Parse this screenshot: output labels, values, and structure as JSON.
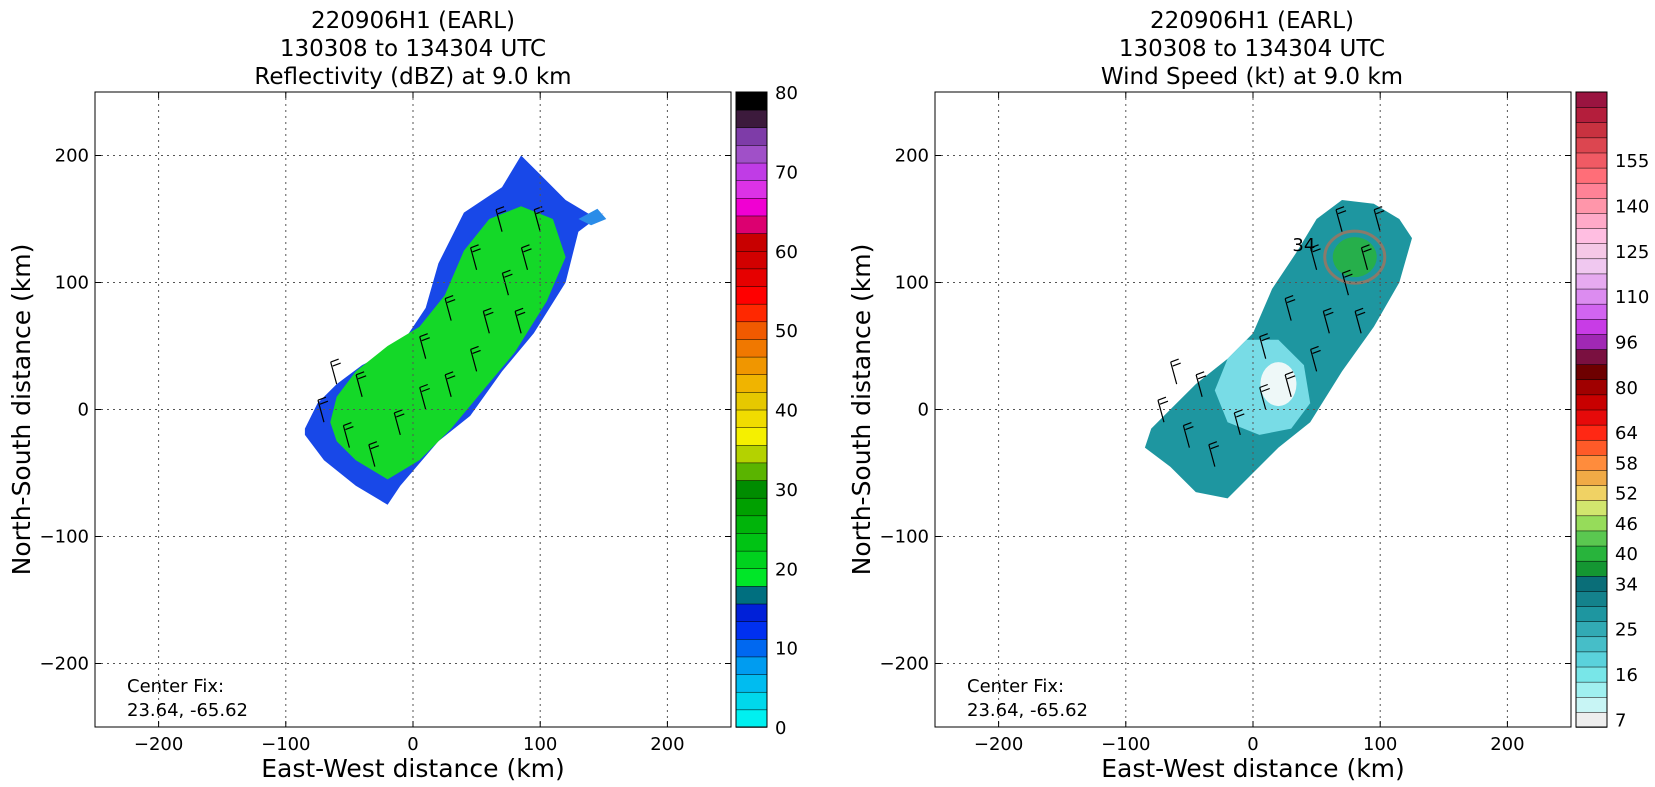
{
  "chart_data": [
    {
      "type": "heatmap",
      "title": [
        "220906H1 (EARL)",
        "130308 to 134304 UTC",
        "Reflectivity (dBZ) at 9.0 km"
      ],
      "xlabel": "East-West distance (km)",
      "ylabel": "North-South distance (km)",
      "xlim": [
        -250,
        250
      ],
      "ylim": [
        -250,
        250
      ],
      "xticks": [
        -200,
        -100,
        0,
        100,
        200
      ],
      "yticks": [
        -200,
        -100,
        0,
        100,
        200
      ],
      "xticklabels": [
        "−200",
        "−100",
        "0",
        "100",
        "200"
      ],
      "yticklabels": [
        "−200",
        "−100",
        "0",
        "100",
        "200"
      ],
      "grid": true,
      "annotation": [
        "Center Fix:",
        "23.64, -65.62"
      ],
      "colorbar": {
        "min": 0,
        "max": 80,
        "step": 2.5,
        "labels": [
          "0",
          "10",
          "20",
          "30",
          "40",
          "50",
          "60",
          "70",
          "80"
        ],
        "label_values": [
          0,
          10,
          20,
          30,
          40,
          50,
          60,
          70,
          80
        ],
        "colors": [
          "#00f0f0",
          "#00d8ec",
          "#00bcf0",
          "#009cf0",
          "#0068f0",
          "#0030f0",
          "#0020d8",
          "#006f7f",
          "#00e628",
          "#00d21e",
          "#00c314",
          "#00b40a",
          "#00a000",
          "#008c00",
          "#5ab400",
          "#b4d200",
          "#f5f000",
          "#f0dc00",
          "#e6c800",
          "#f0b400",
          "#f09600",
          "#f07800",
          "#f05a00",
          "#ff2800",
          "#ff0000",
          "#e60000",
          "#d20000",
          "#c80000",
          "#dc0070",
          "#f000d2",
          "#dc32e6",
          "#c03ce6",
          "#a050c8",
          "#7e3ca8",
          "#3c1a3c",
          "#000000"
        ]
      },
      "field_colors": {
        "weak": "#1848e8",
        "moderate": "#14d828",
        "outer": "#2a8ce8"
      }
    },
    {
      "type": "heatmap",
      "title": [
        "220906H1 (EARL)",
        "130308 to 134304 UTC",
        "Wind Speed (kt) at 9.0 km"
      ],
      "xlabel": "East-West distance (km)",
      "ylabel": "North-South distance (km)",
      "xlim": [
        -250,
        250
      ],
      "ylim": [
        -250,
        250
      ],
      "xticks": [
        -200,
        -100,
        0,
        100,
        200
      ],
      "yticks": [
        -200,
        -100,
        0,
        100,
        200
      ],
      "xticklabels": [
        "−200",
        "−100",
        "0",
        "100",
        "200"
      ],
      "yticklabels": [
        "−200",
        "−100",
        "0",
        "100",
        "200"
      ],
      "grid": true,
      "annotation": [
        "Center Fix:",
        "23.64, -65.62"
      ],
      "contour_label": "34",
      "colorbar": {
        "labels": [
          "7",
          "16",
          "25",
          "34",
          "40",
          "46",
          "52",
          "58",
          "64",
          "80",
          "96",
          "110",
          "125",
          "140",
          "155"
        ],
        "label_bins": [
          0,
          3,
          6,
          9,
          11,
          13,
          15,
          17,
          19,
          22,
          25,
          28,
          31,
          34,
          37
        ],
        "colors": [
          "#eeeeee",
          "#c8f5f5",
          "#a0f0f0",
          "#78e6e8",
          "#5ad2dc",
          "#46bec8",
          "#32aab4",
          "#1e96a0",
          "#14828c",
          "#0a6e78",
          "#149632",
          "#28b43c",
          "#5ac850",
          "#96dc5a",
          "#d2e66e",
          "#f0d264",
          "#f0aa46",
          "#ff8c3c",
          "#ff5a28",
          "#ff2814",
          "#e60a0a",
          "#c80000",
          "#a00000",
          "#6e0000",
          "#7a1040",
          "#a028b4",
          "#c83ce6",
          "#d264f0",
          "#dc8cf0",
          "#e6aaf0",
          "#f0c8f0",
          "#f5c8e6",
          "#ffbee1",
          "#ffaac8",
          "#ff96aa",
          "#ff8296",
          "#ff6e78",
          "#f05a64",
          "#dc4650",
          "#c83240",
          "#b41e3c",
          "#9a1440"
        ]
      },
      "field_colors": {
        "weak": "#1e96a0",
        "calm": "#eef8f8",
        "light": "#78dce6",
        "strong": "#28b43c",
        "contour": "#8a7a6a"
      }
    }
  ]
}
